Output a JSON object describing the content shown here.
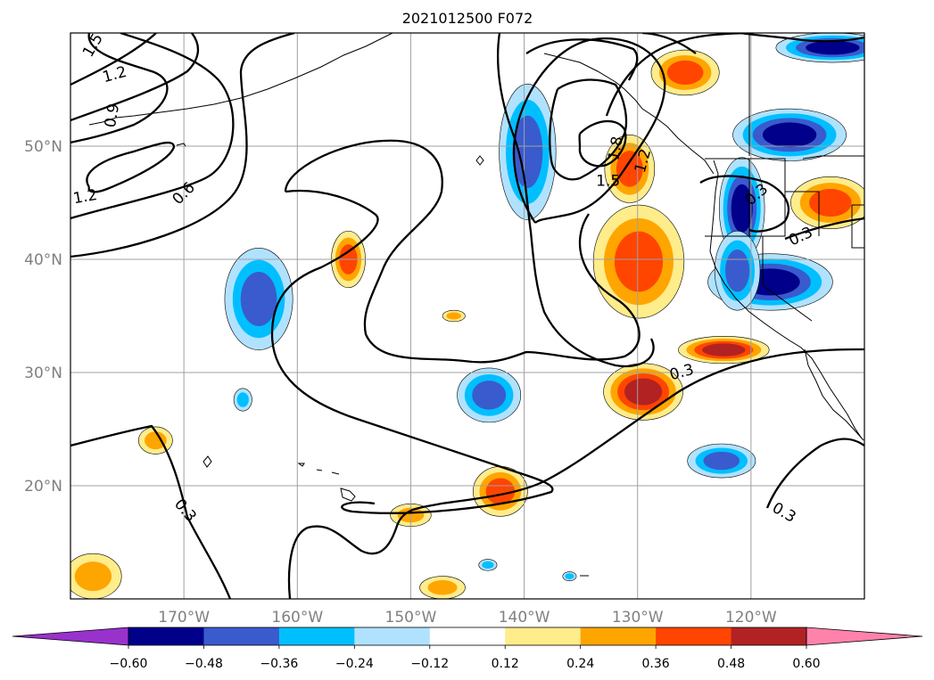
{
  "chart_data": {
    "type": "heatmap",
    "title": "2021012500 F072",
    "map": {
      "lon_range": [
        -180,
        -110
      ],
      "lat_range": [
        10,
        60
      ],
      "x_ticks": [
        {
          "value": -170,
          "label": "170°W"
        },
        {
          "value": -160,
          "label": "160°W"
        },
        {
          "value": -150,
          "label": "150°W"
        },
        {
          "value": -140,
          "label": "140°W"
        },
        {
          "value": -130,
          "label": "130°W"
        },
        {
          "value": -120,
          "label": "120°W"
        }
      ],
      "y_ticks": [
        {
          "value": 20,
          "label": "20°N"
        },
        {
          "value": 30,
          "label": "30°N"
        },
        {
          "value": 40,
          "label": "40°N"
        },
        {
          "value": 50,
          "label": "50°N"
        }
      ],
      "grid": true
    },
    "colorbar": {
      "extend": "both",
      "colors": [
        "#9932cc",
        "#00008b",
        "#3a5bcd",
        "#00bfff",
        "#b0e2ff",
        "#ffffff",
        "#ffec8b",
        "#ffa500",
        "#ff4500",
        "#b22222",
        "#ff82ab"
      ],
      "ticks": [
        "−0.60",
        "−0.48",
        "−0.36",
        "−0.24",
        "−0.12",
        "0.12",
        "0.24",
        "0.36",
        "0.48",
        "0.60"
      ]
    },
    "contour_labels": [
      {
        "text": "1.5",
        "lon": -178.0,
        "lat": 58.9,
        "angle": -60
      },
      {
        "text": "1.2",
        "lon": -176.1,
        "lat": 56.3,
        "angle": -15
      },
      {
        "text": "0.9",
        "lon": -176.3,
        "lat": 52.7,
        "angle": -80
      },
      {
        "text": "1.2",
        "lon": -178.7,
        "lat": 45.5,
        "angle": -10
      },
      {
        "text": "0.6",
        "lon": -170.0,
        "lat": 45.8,
        "angle": -45
      },
      {
        "text": "1.8",
        "lon": -131.9,
        "lat": 49.8,
        "angle": -80
      },
      {
        "text": "1.2",
        "lon": -129.5,
        "lat": 48.7,
        "angle": -75
      },
      {
        "text": "1.5",
        "lon": -132.6,
        "lat": 46.9,
        "angle": 0
      },
      {
        "text": "0.3",
        "lon": -119.5,
        "lat": 45.7,
        "angle": -40
      },
      {
        "text": "0.3",
        "lon": -115.6,
        "lat": 42.0,
        "angle": -25
      },
      {
        "text": "0.3",
        "lon": -126.1,
        "lat": 30.0,
        "angle": -15
      },
      {
        "text": "0.3",
        "lon": -169.9,
        "lat": 17.8,
        "angle": 50
      },
      {
        "text": "0.3",
        "lon": -117.1,
        "lat": 17.6,
        "angle": 30
      }
    ],
    "filled_regions": [
      {
        "level": -0.36,
        "lon": -163.4,
        "lat": 36.5,
        "rx": 3.0,
        "ry": 4.5
      },
      {
        "level": -0.24,
        "lon": -164.8,
        "lat": 27.6,
        "rx": 0.8,
        "ry": 1.0
      },
      {
        "level": -0.36,
        "lon": -143.1,
        "lat": 28.0,
        "rx": 2.8,
        "ry": 2.4
      },
      {
        "level": -0.36,
        "lon": -139.7,
        "lat": 49.5,
        "rx": 2.5,
        "ry": 6.0
      },
      {
        "level": -0.36,
        "lon": -122.6,
        "lat": 22.2,
        "rx": 3.0,
        "ry": 1.5
      },
      {
        "level": -0.48,
        "lon": -118.3,
        "lat": 38.0,
        "rx": 5.5,
        "ry": 2.5
      },
      {
        "level": -0.48,
        "lon": -116.6,
        "lat": 51.0,
        "rx": 5.0,
        "ry": 2.3
      },
      {
        "level": -0.48,
        "lon": -112.8,
        "lat": 58.7,
        "rx": 5.0,
        "ry": 1.3
      },
      {
        "level": -0.48,
        "lon": -120.8,
        "lat": 44.5,
        "rx": 2.0,
        "ry": 4.5
      },
      {
        "level": -0.36,
        "lon": -121.2,
        "lat": 39.0,
        "rx": 2.0,
        "ry": 3.5
      },
      {
        "level": 0.36,
        "lon": -129.9,
        "lat": 39.8,
        "rx": 4.0,
        "ry": 5.0
      },
      {
        "level": 0.36,
        "lon": -130.7,
        "lat": 48.0,
        "rx": 2.2,
        "ry": 3.0
      },
      {
        "level": 0.36,
        "lon": -125.8,
        "lat": 56.5,
        "rx": 3.0,
        "ry": 2.0
      },
      {
        "level": 0.36,
        "lon": -113.0,
        "lat": 45.0,
        "rx": 3.5,
        "ry": 2.3
      },
      {
        "level": 0.36,
        "lon": -155.5,
        "lat": 40.0,
        "rx": 1.5,
        "ry": 2.5
      },
      {
        "level": 0.36,
        "lon": -142.1,
        "lat": 19.5,
        "rx": 2.4,
        "ry": 2.2
      },
      {
        "level": 0.48,
        "lon": -129.5,
        "lat": 28.3,
        "rx": 3.5,
        "ry": 2.5
      },
      {
        "level": 0.48,
        "lon": -122.4,
        "lat": 32.0,
        "rx": 4.0,
        "ry": 1.2
      },
      {
        "level": 0.24,
        "lon": -172.5,
        "lat": 24.0,
        "rx": 1.5,
        "ry": 1.2
      },
      {
        "level": 0.24,
        "lon": -150.0,
        "lat": 17.4,
        "rx": 1.8,
        "ry": 1.0
      },
      {
        "level": 0.24,
        "lon": -178.0,
        "lat": 12.0,
        "rx": 2.5,
        "ry": 2.0
      },
      {
        "level": 0.24,
        "lon": -147.2,
        "lat": 11.0,
        "rx": 2.0,
        "ry": 1.0
      },
      {
        "level": 0.24,
        "lon": -146.2,
        "lat": 35.0,
        "rx": 1.0,
        "ry": 0.5
      },
      {
        "level": -0.24,
        "lon": -143.2,
        "lat": 13.0,
        "rx": 0.8,
        "ry": 0.5
      },
      {
        "level": -0.24,
        "lon": -136.0,
        "lat": 12.0,
        "rx": 0.6,
        "ry": 0.4
      }
    ]
  }
}
